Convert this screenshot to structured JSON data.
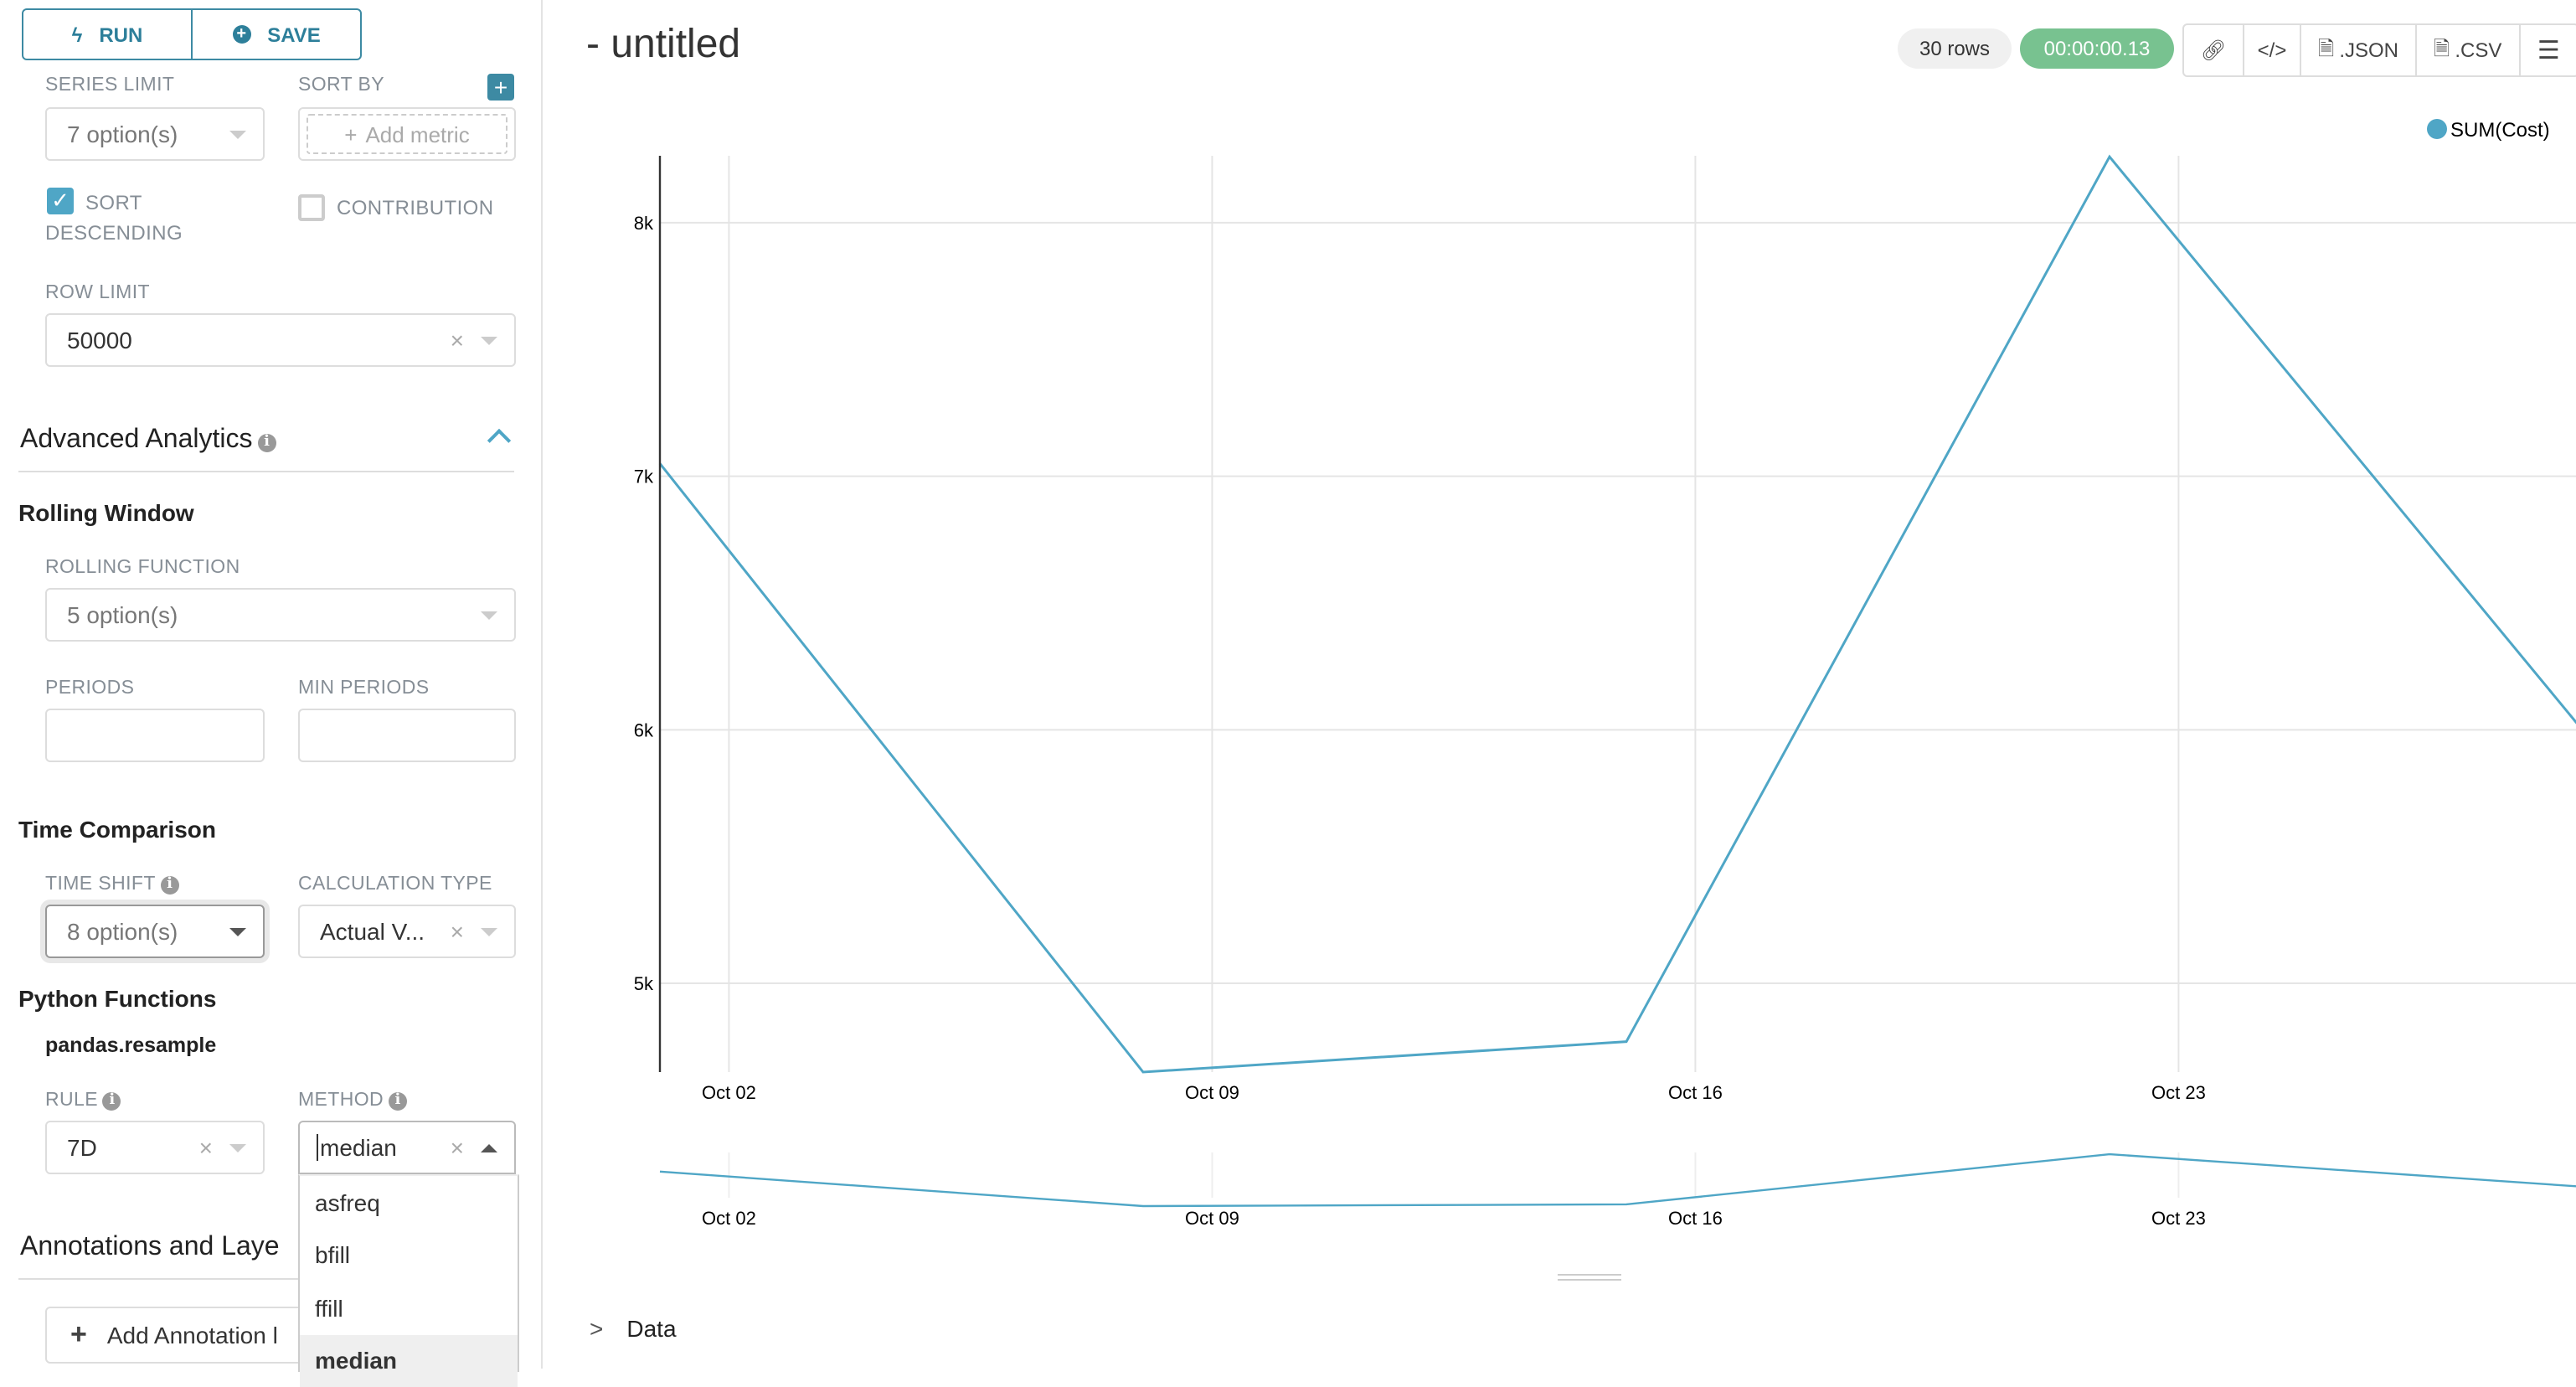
{
  "toolbar": {
    "run_label": "RUN",
    "save_label": "SAVE"
  },
  "controls": {
    "series_limit": {
      "label": "SERIES LIMIT",
      "value": "7 option(s)"
    },
    "sort_by": {
      "label": "SORT BY",
      "placeholder": "Add metric"
    },
    "sort_descending": {
      "label_1": "SORT",
      "label_2": "DESCENDING",
      "checked": true
    },
    "contribution": {
      "label": "CONTRIBUTION",
      "checked": false
    },
    "row_limit": {
      "label": "ROW LIMIT",
      "value": "50000"
    }
  },
  "advanced_analytics": {
    "title": "Advanced Analytics",
    "rolling_window": {
      "title": "Rolling Window",
      "rolling_function": {
        "label": "ROLLING FUNCTION",
        "value": "5 option(s)"
      },
      "periods": {
        "label": "PERIODS",
        "value": ""
      },
      "min_periods": {
        "label": "MIN PERIODS",
        "value": ""
      }
    },
    "time_comparison": {
      "title": "Time Comparison",
      "time_shift": {
        "label": "TIME SHIFT",
        "value": "8 option(s)"
      },
      "calculation_type": {
        "label": "CALCULATION TYPE",
        "value": "Actual V..."
      }
    },
    "python_functions": {
      "title": "Python Functions",
      "subtitle": "pandas.resample",
      "rule": {
        "label": "RULE",
        "value": "7D"
      },
      "method": {
        "label": "METHOD",
        "value": "median",
        "options": [
          "asfreq",
          "bfill",
          "ffill",
          "median"
        ],
        "selected": "median"
      }
    }
  },
  "annotations": {
    "title": "Annotations and Laye",
    "add_button": "Add Annotation l"
  },
  "header": {
    "title": "- untitled",
    "rows_badge": "30 rows",
    "timer": "00:00:00.13",
    "json_label": ".JSON",
    "csv_label": ".CSV"
  },
  "colors": {
    "accent": "#3d8aa3",
    "series": "#4fa6c6",
    "timer": "#78c290",
    "checkbox": "#4fa6c6"
  },
  "icons": {
    "run": "bolt-icon",
    "save": "plus-circle-icon",
    "link": "link-icon",
    "embed": "code-icon",
    "json": "file-code-icon",
    "csv": "file-text-icon",
    "menu": "hamburger-icon"
  },
  "data_section": {
    "label": "Data"
  },
  "chart_data": {
    "type": "line",
    "legend": [
      "SUM(Cost)"
    ],
    "legend_position": "top-right",
    "series": [
      {
        "name": "SUM(Cost)",
        "x": [
          "2018-10-01",
          "2018-10-08",
          "2018-10-15",
          "2018-10-22",
          "2018-10-29"
        ],
        "values": [
          7050,
          4650,
          4770,
          8260,
          5950
        ]
      }
    ],
    "x_ticks": [
      "Oct 02",
      "Oct 09",
      "Oct 16",
      "Oct 23"
    ],
    "y_ticks": [
      "5k",
      "6k",
      "7k",
      "8k"
    ],
    "ylim": [
      4650,
      8264
    ],
    "grid": true,
    "overview_brush": true
  }
}
